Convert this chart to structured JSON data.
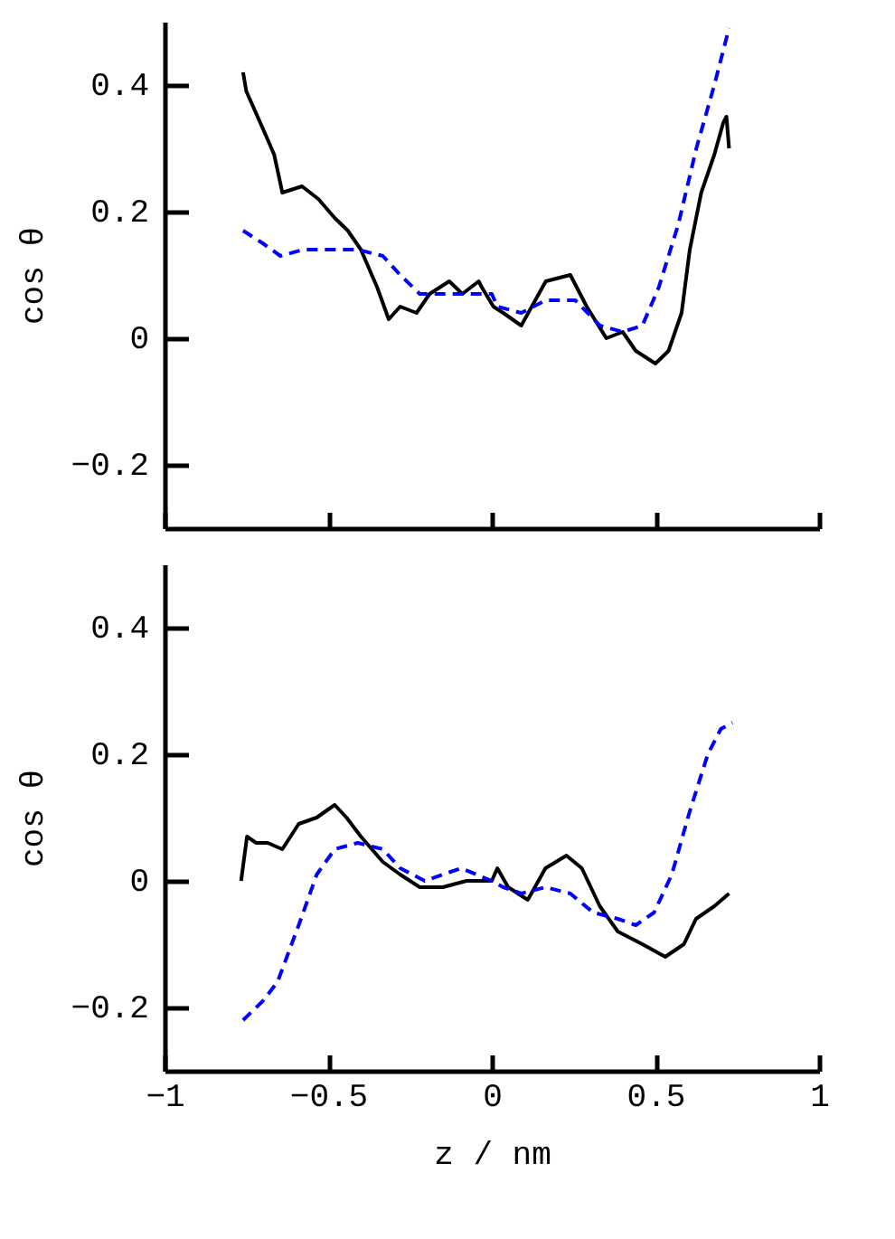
{
  "chart_data": [
    {
      "type": "line",
      "ylabel": "cos θ",
      "xlim": [
        -1,
        1
      ],
      "xticks": [
        -1,
        -0.5,
        0,
        0.5,
        1
      ],
      "ylim": [
        -0.3,
        0.5
      ],
      "yticks": [
        -0.2,
        0,
        0.2,
        0.4
      ],
      "tick_labels": "y",
      "grid": false,
      "series": [
        {
          "color": "#000000",
          "line_style": "solid",
          "x": [
            -0.76,
            -0.75,
            -0.69,
            -0.665,
            -0.64,
            -0.58,
            -0.53,
            -0.48,
            -0.44,
            -0.4,
            -0.35,
            -0.315,
            -0.28,
            -0.23,
            -0.19,
            -0.13,
            -0.09,
            -0.04,
            -0.03,
            0.005,
            0.035,
            0.09,
            0.165,
            0.24,
            0.29,
            0.35,
            0.4,
            0.44,
            0.5,
            0.54,
            0.58,
            0.605,
            0.64,
            0.68,
            0.707,
            0.717,
            0.725
          ],
          "values": [
            0.42,
            0.39,
            0.32,
            0.29,
            0.23,
            0.24,
            0.22,
            0.19,
            0.17,
            0.14,
            0.08,
            0.03,
            0.05,
            0.04,
            0.07,
            0.09,
            0.07,
            0.09,
            0.08,
            0.05,
            0.04,
            0.02,
            0.09,
            0.1,
            0.05,
            0.0,
            0.01,
            -0.02,
            -0.04,
            -0.02,
            0.04,
            0.14,
            0.23,
            0.29,
            0.34,
            0.35,
            0.3
          ]
        },
        {
          "color": "#0000ff",
          "line_style": "dashed",
          "x": [
            -0.76,
            -0.7,
            -0.646,
            -0.575,
            -0.48,
            -0.41,
            -0.333,
            -0.28,
            -0.22,
            -0.15,
            -0.08,
            0,
            0.017,
            0.09,
            0.165,
            0.255,
            0.33,
            0.4,
            0.46,
            0.51,
            0.57,
            0.625,
            0.68,
            0.725
          ],
          "values": [
            0.17,
            0.15,
            0.13,
            0.14,
            0.14,
            0.14,
            0.13,
            0.1,
            0.07,
            0.07,
            0.07,
            0.07,
            0.05,
            0.04,
            0.06,
            0.06,
            0.02,
            0.01,
            0.02,
            0.08,
            0.18,
            0.3,
            0.4,
            0.49
          ]
        }
      ]
    },
    {
      "type": "line",
      "xlabel": "z / nm",
      "ylabel": "cos θ",
      "xlim": [
        -1,
        1
      ],
      "xticks": [
        -1,
        -0.5,
        0,
        0.5,
        1
      ],
      "ylim": [
        -0.3,
        0.5
      ],
      "yticks": [
        -0.2,
        0,
        0.2,
        0.4
      ],
      "grid": false,
      "series": [
        {
          "color": "#000000",
          "line_style": "solid",
          "x": [
            -0.766,
            -0.748,
            -0.72,
            -0.685,
            -0.64,
            -0.59,
            -0.535,
            -0.48,
            -0.444,
            -0.4,
            -0.333,
            -0.28,
            -0.22,
            -0.15,
            -0.077,
            0,
            0.017,
            0.05,
            0.11,
            0.164,
            0.228,
            0.275,
            0.33,
            0.385,
            0.46,
            0.53,
            0.587,
            0.624,
            0.68,
            0.725
          ],
          "values": [
            0.0,
            0.07,
            0.06,
            0.06,
            0.05,
            0.09,
            0.1,
            0.12,
            0.1,
            0.07,
            0.03,
            0.01,
            -0.01,
            -0.01,
            0.0,
            0.0,
            0.02,
            -0.01,
            -0.03,
            0.02,
            0.04,
            0.02,
            -0.04,
            -0.08,
            -0.1,
            -0.12,
            -0.1,
            -0.06,
            -0.04,
            -0.02
          ]
        },
        {
          "color": "#0000ff",
          "line_style": "dashed",
          "x": [
            -0.76,
            -0.7,
            -0.655,
            -0.59,
            -0.535,
            -0.48,
            -0.41,
            -0.333,
            -0.28,
            -0.205,
            -0.094,
            0,
            0.035,
            0.09,
            0.164,
            0.24,
            0.31,
            0.385,
            0.44,
            0.496,
            0.55,
            0.605,
            0.66,
            0.7,
            0.735
          ],
          "values": [
            -0.22,
            -0.19,
            -0.16,
            -0.07,
            0.01,
            0.05,
            0.06,
            0.05,
            0.02,
            0.0,
            0.02,
            0.0,
            -0.01,
            -0.02,
            -0.01,
            -0.02,
            -0.05,
            -0.06,
            -0.07,
            -0.05,
            0.01,
            0.11,
            0.2,
            0.24,
            0.25
          ]
        }
      ]
    }
  ]
}
